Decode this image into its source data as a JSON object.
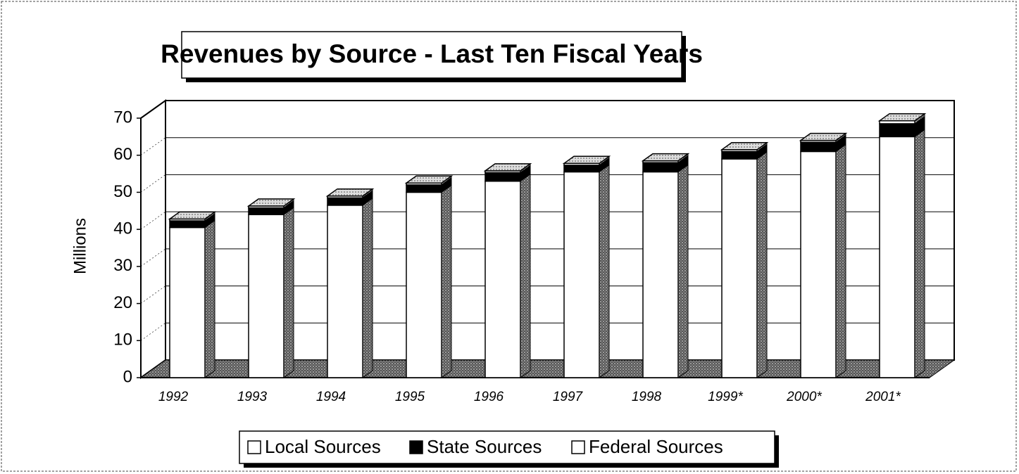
{
  "chart_data": {
    "type": "bar3d_stacked",
    "title": "Revenues by Source - Last Ten Fiscal Years",
    "y_label": "Millions",
    "categories": [
      "1992",
      "1993",
      "1994",
      "1995",
      "1996",
      "1997",
      "1998",
      "1999*",
      "2000*",
      "2001*"
    ],
    "series": [
      {
        "name": "Local Sources",
        "color": "#ffffff",
        "values": [
          40.5,
          44,
          46.5,
          50,
          53,
          55.5,
          55.5,
          59,
          61,
          65
        ]
      },
      {
        "name": "State Sources",
        "color": "#000000",
        "values": [
          1.8,
          1.8,
          2,
          2,
          2.3,
          1.8,
          2.5,
          2,
          2.5,
          3.5
        ]
      },
      {
        "name": "Federal Sources",
        "color": "#ffffff",
        "values": [
          0.5,
          0.5,
          0.5,
          0.5,
          0.5,
          0.5,
          0.5,
          0.5,
          0.5,
          0.8
        ]
      }
    ],
    "ylim": [
      0,
      70
    ],
    "yticks": [
      0,
      10,
      20,
      30,
      40,
      50,
      60,
      70
    ],
    "grid": true
  }
}
